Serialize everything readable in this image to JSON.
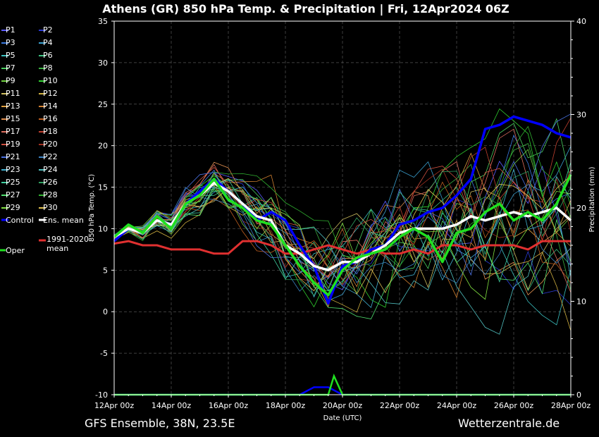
{
  "header": {
    "title": "Athens  (GR)  850 hPa Temp. & Precipitation | Fri, 12Apr2024 06Z"
  },
  "footer": {
    "left": "GFS Ensemble, 38N, 23.5E",
    "right": "Wetterzentrale.de"
  },
  "chart_data": {
    "type": "line",
    "title": "Athens  (GR)  850 hPa Temp. & Precipitation | Fri, 12Apr2024 06Z",
    "xlabel": "Date (UTC)",
    "ylabel": "850 hPa Temp. (°C)",
    "y2label": "Precipitation (mm)",
    "x_ticks": [
      "12Apr 00z",
      "14Apr 00z",
      "16Apr 00z",
      "18Apr 00z",
      "20Apr 00z",
      "22Apr 00z",
      "24Apr 00z",
      "26Apr 00z",
      "28Apr 00z"
    ],
    "x_range_days": [
      0,
      16
    ],
    "ylim": [
      -10,
      35
    ],
    "y_ticks": [
      35,
      30,
      25,
      20,
      15,
      10,
      5,
      0,
      -5,
      -10
    ],
    "y2lim": [
      0,
      40
    ],
    "y2_ticks": [
      40,
      30,
      20,
      10,
      0
    ],
    "grid": true,
    "legend_placement": "left",
    "legend": [
      {
        "name": "P1",
        "color": "#5a5aff"
      },
      {
        "name": "P2",
        "color": "#2a3ad0"
      },
      {
        "name": "P3",
        "color": "#3a7ae0"
      },
      {
        "name": "P4",
        "color": "#3aa0d0"
      },
      {
        "name": "P5",
        "color": "#3ac0c0"
      },
      {
        "name": "P6",
        "color": "#3ac080"
      },
      {
        "name": "P7",
        "color": "#4ad060"
      },
      {
        "name": "P8",
        "color": "#3ab040"
      },
      {
        "name": "P9",
        "color": "#70d040"
      },
      {
        "name": "P10",
        "color": "#30d030"
      },
      {
        "name": "P11",
        "color": "#d0c060"
      },
      {
        "name": "P12",
        "color": "#d0b040"
      },
      {
        "name": "P13",
        "color": "#e0a040"
      },
      {
        "name": "P14",
        "color": "#d08030"
      },
      {
        "name": "P15",
        "color": "#e09050"
      },
      {
        "name": "P16",
        "color": "#c06020"
      },
      {
        "name": "P17",
        "color": "#e07060"
      },
      {
        "name": "P18",
        "color": "#c04030"
      },
      {
        "name": "P19",
        "color": "#d05040"
      },
      {
        "name": "P20",
        "color": "#a03020"
      },
      {
        "name": "P21",
        "color": "#4a70e0"
      },
      {
        "name": "P22",
        "color": "#3a80c0"
      },
      {
        "name": "P23",
        "color": "#40b0d0"
      },
      {
        "name": "P24",
        "color": "#50c0c0"
      },
      {
        "name": "P25",
        "color": "#40d0a0"
      },
      {
        "name": "P26",
        "color": "#30a060"
      },
      {
        "name": "P27",
        "color": "#50e070"
      },
      {
        "name": "P28",
        "color": "#30b030"
      },
      {
        "name": "P29",
        "color": "#80e040"
      },
      {
        "name": "P30",
        "color": "#e0c050"
      },
      {
        "name": "Control",
        "color": "#0000ff"
      },
      {
        "name": "Ens. mean",
        "color": "#ffffff"
      },
      {
        "name": "1991-2020 mean",
        "color": "#e03030"
      },
      {
        "name": "Oper",
        "color": "#20e020"
      }
    ],
    "series_temp": [
      {
        "name": "Control",
        "color": "#0000ff",
        "x": [
          0,
          0.5,
          1,
          1.5,
          2,
          2.5,
          3,
          3.5,
          4,
          4.5,
          5,
          5.5,
          6,
          6.5,
          7,
          7.5,
          8,
          8.5,
          9,
          9.5,
          10,
          10.5,
          11,
          11.5,
          12,
          12.5,
          13,
          13.5,
          14,
          14.5,
          15,
          15.5,
          16
        ],
        "y": [
          8.5,
          10,
          9.5,
          11,
          10.5,
          13,
          14.5,
          16,
          14.5,
          13,
          11,
          12,
          11,
          8,
          5.5,
          1,
          5.5,
          6,
          7.5,
          8,
          10.5,
          11,
          12,
          12.5,
          14,
          16,
          22,
          22.5,
          23.5,
          23,
          22.5,
          21.5,
          21
        ]
      },
      {
        "name": "Ens. mean",
        "color": "#ffffff",
        "x": [
          0,
          0.5,
          1,
          1.5,
          2,
          2.5,
          3,
          3.5,
          4,
          4.5,
          5,
          5.5,
          6,
          6.5,
          7,
          7.5,
          8,
          8.5,
          9,
          9.5,
          10,
          10.5,
          11,
          11.5,
          12,
          12.5,
          13,
          13.5,
          14,
          14.5,
          15,
          15.5,
          16
        ],
        "y": [
          9,
          10,
          9.5,
          11,
          10.5,
          13,
          14,
          15.5,
          14.5,
          13,
          11.5,
          11,
          8,
          7,
          5.5,
          5,
          6,
          6,
          7,
          8,
          9.5,
          10,
          10,
          10,
          10.5,
          11.5,
          11,
          11.5,
          12,
          11.5,
          12,
          12.5,
          11
        ]
      },
      {
        "name": "1991-2020 mean",
        "color": "#e03030",
        "x": [
          0,
          0.5,
          1,
          1.5,
          2,
          2.5,
          3,
          3.5,
          4,
          4.5,
          5,
          5.5,
          6,
          6.5,
          7,
          7.5,
          8,
          8.5,
          9,
          9.5,
          10,
          10.5,
          11,
          11.5,
          12,
          12.5,
          13,
          13.5,
          14,
          14.5,
          15,
          15.5,
          16
        ],
        "y": [
          8.2,
          8.5,
          8,
          8,
          7.5,
          7.5,
          7.5,
          7,
          7,
          8.5,
          8.5,
          8,
          7,
          7,
          7.5,
          8,
          7.5,
          7,
          7.5,
          7,
          7,
          7.5,
          7,
          8,
          8,
          7.5,
          8,
          8,
          8,
          7.5,
          8.5,
          8.5,
          8.5
        ]
      },
      {
        "name": "Oper",
        "color": "#20e020",
        "x": [
          0,
          0.5,
          1,
          1.5,
          2,
          2.5,
          3,
          3.5,
          4,
          4.5,
          5,
          5.5,
          6,
          6.5,
          7,
          7.5,
          8,
          8.5,
          9,
          9.5,
          10,
          10.5,
          11,
          11.5,
          12,
          12.5,
          13,
          13.5,
          14,
          14.5,
          15,
          15.5,
          16
        ],
        "y": [
          9,
          10.5,
          9.5,
          11.5,
          10,
          13,
          14,
          16,
          13.5,
          12.5,
          11,
          10.5,
          8,
          5.5,
          3.5,
          2,
          5,
          6.5,
          7,
          7.5,
          9,
          10,
          9,
          6,
          9.5,
          10,
          12,
          13,
          11,
          12,
          11,
          13,
          16.5
        ]
      }
    ],
    "precip_control": {
      "x": [
        0,
        6.5,
        7,
        7.5,
        8,
        16
      ],
      "y": [
        0,
        0,
        0.8,
        0.8,
        0,
        0
      ]
    },
    "precip_oper": {
      "x": [
        0,
        7.5,
        7.7,
        8,
        16
      ],
      "y": [
        0,
        0,
        2,
        0,
        0
      ]
    }
  }
}
